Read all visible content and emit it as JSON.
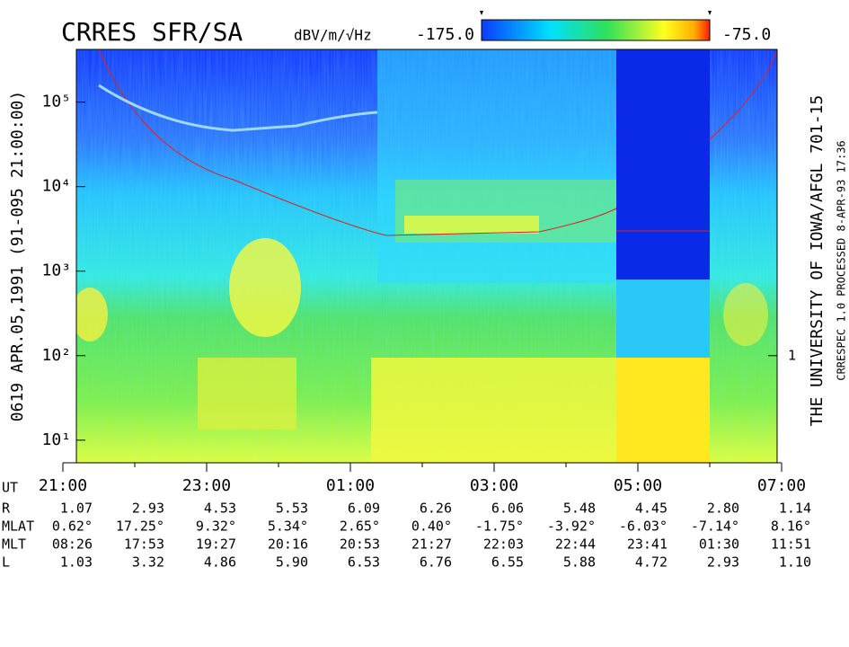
{
  "chart_data": {
    "type": "spectrogram",
    "title": "CRRES SFR/SA",
    "colorbar_label": "dBV/m/√Hz",
    "clim": [
      -175,
      -75
    ],
    "colorbar_ticks": [
      {
        "value": -175,
        "label": "-175.0"
      },
      {
        "value": -75,
        "label": "-75.0"
      }
    ],
    "left_label": "0619  APR.05,1991  (91-095 21:00:00)",
    "right_label": "THE UNIVERSITY OF IOWA/AFGL 701-15",
    "processed_label": "CRRESPEC 1.0  PROCESSED  8-APR-93  17:36",
    "log_y": true,
    "ylim": [
      5.4,
      420000
    ],
    "yticks": [
      {
        "value": 10,
        "label": "10¹"
      },
      {
        "value": 100,
        "label": "10²"
      },
      {
        "value": 1000,
        "label": "10³"
      },
      {
        "value": 10000,
        "label": "10⁴"
      },
      {
        "value": 100000,
        "label": "10⁵"
      }
    ],
    "y2lim": [
      0.054,
      4200
    ],
    "y2ticks": [
      1
    ],
    "xlim": [
      0,
      10
    ],
    "xticks": [
      {
        "value": 0,
        "label": "21:00"
      },
      {
        "value": 2,
        "label": "23:00"
      },
      {
        "value": 4,
        "label": "01:00"
      },
      {
        "value": 6,
        "label": "03:00"
      },
      {
        "value": 8,
        "label": "05:00"
      },
      {
        "value": 10,
        "label": "07:00"
      }
    ],
    "time_label": "UT",
    "ephemeris": [
      {
        "name": "R",
        "values": [
          "1.07",
          "2.93",
          "4.53",
          "5.53",
          "6.09",
          "6.26",
          "6.06",
          "5.48",
          "4.45",
          "2.80",
          "1.14"
        ]
      },
      {
        "name": "MLAT",
        "values": [
          "0.62°",
          "17.25°",
          "9.32°",
          "5.34°",
          "2.65°",
          "0.40°",
          "-1.75°",
          "-3.92°",
          "-6.03°",
          "-7.14°",
          "8.16°"
        ]
      },
      {
        "name": "MLT",
        "values": [
          "08:26",
          "17:53",
          "19:27",
          "20:16",
          "20:53",
          "21:27",
          "22:03",
          "22:44",
          "23:41",
          "01:30",
          "11:51"
        ]
      },
      {
        "name": "L",
        "values": [
          "1.03",
          "3.32",
          "4.86",
          "5.90",
          "6.53",
          "6.76",
          "6.55",
          "5.88",
          "4.72",
          "2.93",
          "1.10"
        ]
      }
    ]
  }
}
